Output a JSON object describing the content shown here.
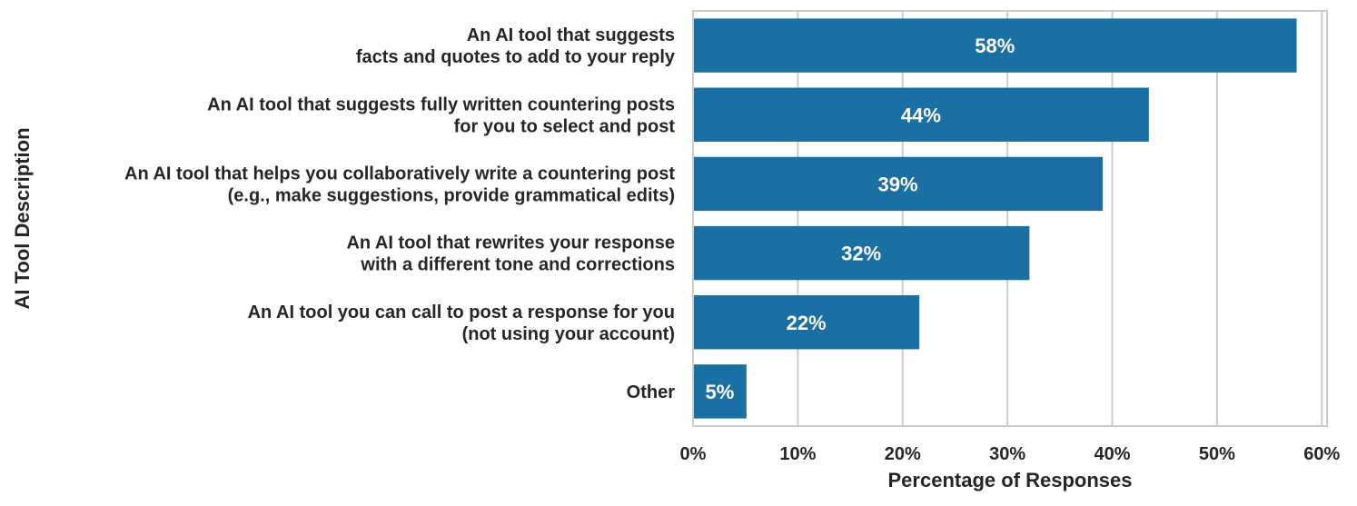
{
  "chart_data": {
    "type": "bar",
    "orientation": "horizontal",
    "categories": [
      [
        "An AI tool that suggests",
        "facts and quotes to add to your reply"
      ],
      [
        "An AI tool that suggests fully written countering posts",
        "for you to select and post"
      ],
      [
        "An AI tool that helps you collaboratively write a countering post",
        "(e.g., make suggestions, provide grammatical edits)"
      ],
      [
        "An AI tool that rewrites your response",
        "with a different tone and corrections"
      ],
      [
        "An AI tool you can call to post a response for you",
        "(not using your account)"
      ],
      [
        "Other"
      ]
    ],
    "values": [
      57.6,
      43.5,
      39.1,
      32.1,
      21.6,
      5.1
    ],
    "data_labels": [
      "58%",
      "44%",
      "39%",
      "32%",
      "22%",
      "5%"
    ],
    "xlabel": "Percentage of Responses",
    "ylabel": "AI Tool Description",
    "xlim": [
      0,
      60.5
    ],
    "xticks": [
      0,
      10,
      20,
      30,
      40,
      50,
      60
    ],
    "xtick_labels": [
      "0%",
      "10%",
      "20%",
      "30%",
      "40%",
      "50%",
      "60%"
    ],
    "grid": true,
    "bar_color": "#1a6fa3",
    "grid_color": "#cccccc"
  }
}
